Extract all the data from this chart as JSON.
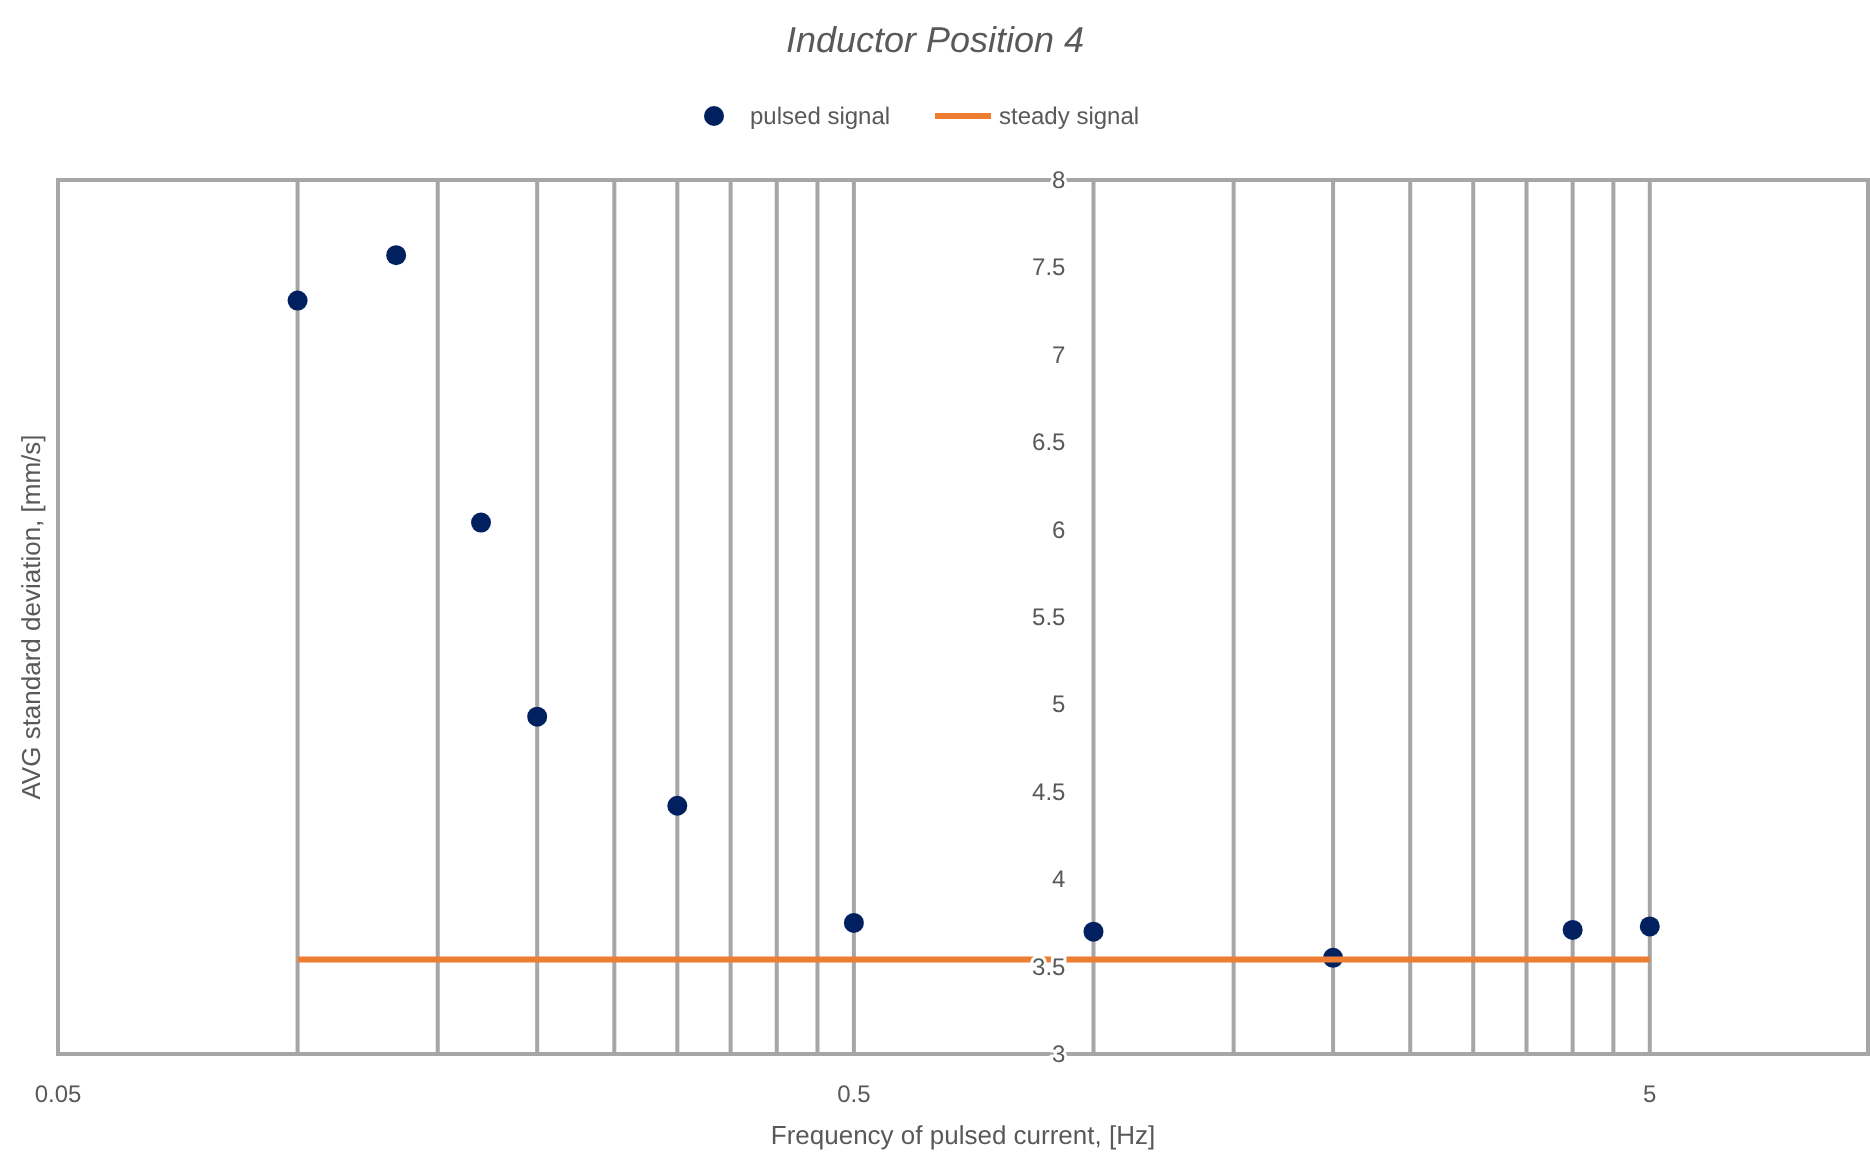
{
  "chart_data": {
    "type": "scatter",
    "title": "Inductor Position 4",
    "xlabel": "Frequency of pulsed current, [Hz]",
    "ylabel": "AVG standard deviation, [mm/s]",
    "log": "x",
    "grid": "x",
    "legend": "top",
    "marker": "circle",
    "xlim": [
      0.05,
      9.4
    ],
    "ylim": [
      3,
      8
    ],
    "xticks": [
      0.05,
      {
        "value": 0.1,
        "label": null
      },
      {
        "value": 0.15,
        "label": null
      },
      {
        "value": 0.2,
        "label": null
      },
      {
        "value": 0.25,
        "label": null
      },
      {
        "value": 0.3,
        "label": null
      },
      {
        "value": 0.35,
        "label": null
      },
      {
        "value": 0.4,
        "label": null
      },
      {
        "value": 0.45,
        "label": null
      },
      0.5,
      {
        "value": 1,
        "label": null
      },
      {
        "value": 1.5,
        "label": null
      },
      {
        "value": 2,
        "label": null
      },
      {
        "value": 2.5,
        "label": null
      },
      {
        "value": 3,
        "label": null
      },
      {
        "value": 3.5,
        "label": null
      },
      {
        "value": 4,
        "label": null
      },
      {
        "value": 4.5,
        "label": null
      },
      5
    ],
    "yticks": [
      3,
      3.5,
      4,
      4.5,
      5,
      5.5,
      6,
      6.5,
      7,
      7.5,
      8
    ],
    "series": [
      {
        "name": "pulsed signal",
        "color": "#002060",
        "x": [
          0.1,
          0.133,
          0.17,
          0.2,
          0.3,
          0.5,
          1,
          2,
          4,
          5
        ],
        "values": [
          7.31,
          7.57,
          6.04,
          4.93,
          4.42,
          3.75,
          3.7,
          3.55,
          3.71,
          3.73
        ]
      },
      {
        "name": "steady signal",
        "type": "line",
        "color": "#ed7d31",
        "marker": "none",
        "x": [
          0.1,
          5
        ],
        "values": [
          3.54,
          3.54
        ]
      }
    ]
  }
}
